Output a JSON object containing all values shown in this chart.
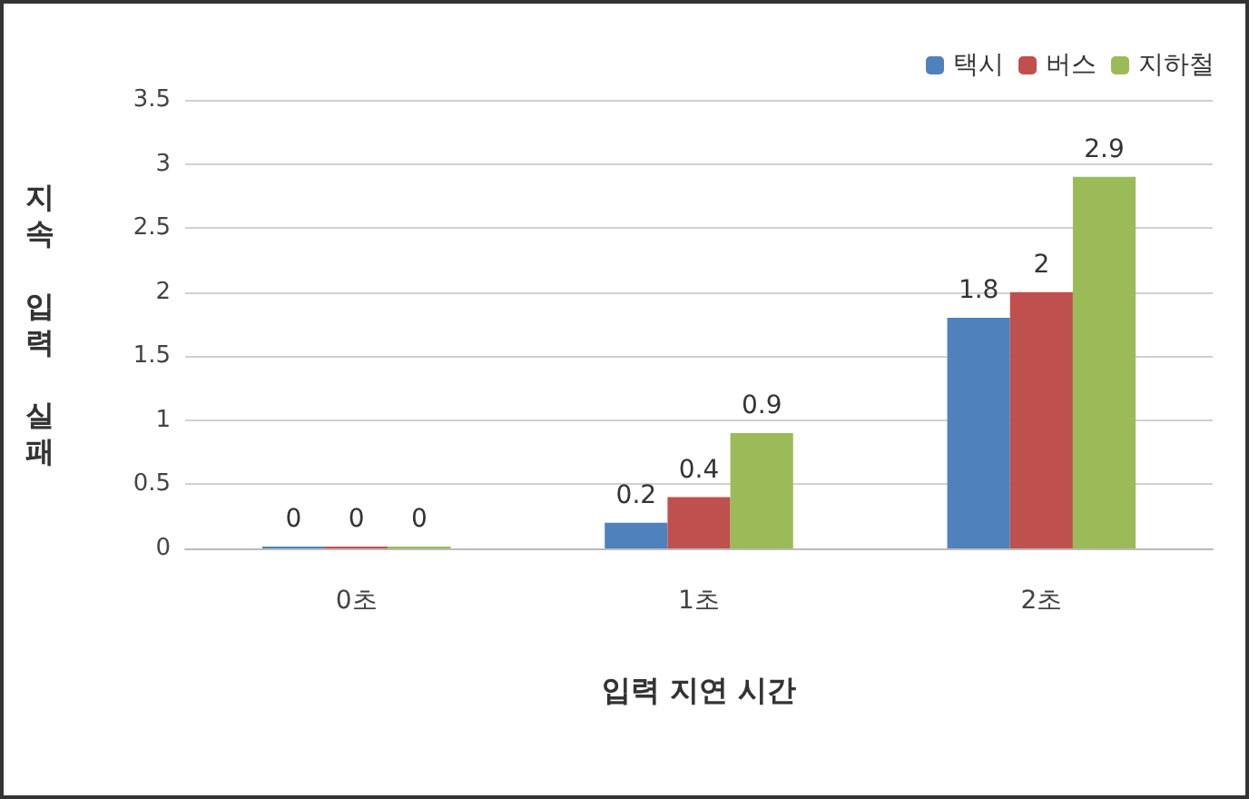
{
  "chart_data": {
    "type": "bar",
    "xlabel": "입력 지연 시간",
    "ylabel": "지속 입력 실패",
    "categories": [
      "0초",
      "1초",
      "2초"
    ],
    "series": [
      {
        "name": "택시",
        "color": "#4f81bd",
        "values": [
          0,
          0.2,
          1.8
        ]
      },
      {
        "name": "버스",
        "color": "#c0504d",
        "values": [
          0,
          0.4,
          2
        ]
      },
      {
        "name": "지하철",
        "color": "#9bbb59",
        "values": [
          0,
          0.9,
          2.9
        ]
      }
    ],
    "ylim": [
      0,
      3.5
    ],
    "yticks": [
      0,
      0.5,
      1,
      1.5,
      2,
      2.5,
      3,
      3.5
    ],
    "grid": "y",
    "legend": "top right",
    "data_labels": true
  }
}
